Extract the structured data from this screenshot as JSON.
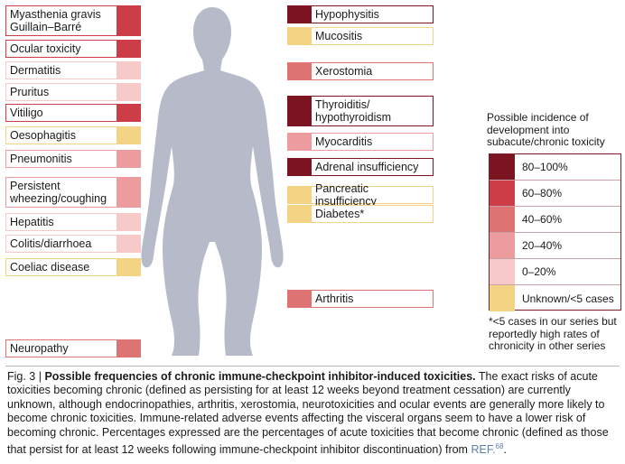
{
  "levels": {
    "l80_100": {
      "label": "80–100%",
      "color": "#7c1422"
    },
    "l60_80": {
      "label": "60–80%",
      "color": "#cc3d47"
    },
    "l40_60": {
      "label": "40–60%",
      "color": "#de7373"
    },
    "l20_40": {
      "label": "20–40%",
      "color": "#ec9c9e"
    },
    "l0_20": {
      "label": "0–20%",
      "color": "#f8c9c9"
    },
    "unknown": {
      "label": "Unknown/<5 cases",
      "color": "#f2d484"
    }
  },
  "left_toxicities": [
    {
      "label": "Myasthenia gravis\nGuillain–Barré",
      "level": "l60_80"
    },
    {
      "label": "Ocular toxicity",
      "level": "l60_80"
    },
    {
      "label": "Dermatitis",
      "level": "l0_20"
    },
    {
      "label": "Pruritus",
      "level": "l0_20"
    },
    {
      "label": "Vitiligo",
      "level": "l60_80"
    },
    {
      "label": "Oesophagitis",
      "level": "unknown"
    },
    {
      "label": "Pneumonitis",
      "level": "l20_40"
    },
    {
      "label": "Persistent\nwheezing/coughing",
      "level": "l20_40"
    },
    {
      "label": "Hepatitis",
      "level": "l0_20"
    },
    {
      "label": "Colitis/diarrhoea",
      "level": "l0_20"
    },
    {
      "label": "Coeliac disease",
      "level": "unknown"
    },
    {
      "label": "Neuropathy",
      "level": "l40_60"
    }
  ],
  "right_toxicities": [
    {
      "label": "Hypophysitis",
      "level": "l80_100"
    },
    {
      "label": "Mucositis",
      "level": "unknown"
    },
    {
      "label": "Xerostomia",
      "level": "l40_60"
    },
    {
      "label": "Thyroiditis/\nhypothyroidism",
      "level": "l80_100"
    },
    {
      "label": "Myocarditis",
      "level": "l20_40"
    },
    {
      "label": "Adrenal insufficiency",
      "level": "l80_100"
    },
    {
      "label": "Pancreatic insufficiency",
      "level": "unknown"
    },
    {
      "label": "Diabetes*",
      "level": "unknown"
    },
    {
      "label": "Arthritis",
      "level": "l40_60"
    }
  ],
  "legend": {
    "title": "Possible incidence of development into subacute/chronic toxicity",
    "order": [
      "l80_100",
      "l60_80",
      "l40_60",
      "l20_40",
      "l0_20",
      "unknown"
    ],
    "border_color": "#7a1e2a"
  },
  "footnote": "*<5 cases in our series but reportedly high rates of chronicity in other series",
  "caption": {
    "fig": "Fig. 3 | ",
    "bold": "Possible frequencies of chronic immune-checkpoint inhibitor-induced toxicities.",
    "text": " The exact risks of acute toxicities becoming chronic (defined as persisting for at least 12 weeks beyond treatment cessation) are currently unknown, although endocrinopathies, arthritis, xerostomia, neurotoxicities and ocular events are generally more likely to become chronic toxicities. Immune-related adverse events affecting the visceral organs seem to have a lower risk of becoming chronic. Percentages expressed are the percentages of acute toxicities that become chronic (defined as those that persist for at least 12 weeks following immune-checkpoint inhibitor discontinuation) from ",
    "ref": "REF.",
    "ref_num": "68",
    "end": "."
  },
  "body_color": "#b7bac9"
}
